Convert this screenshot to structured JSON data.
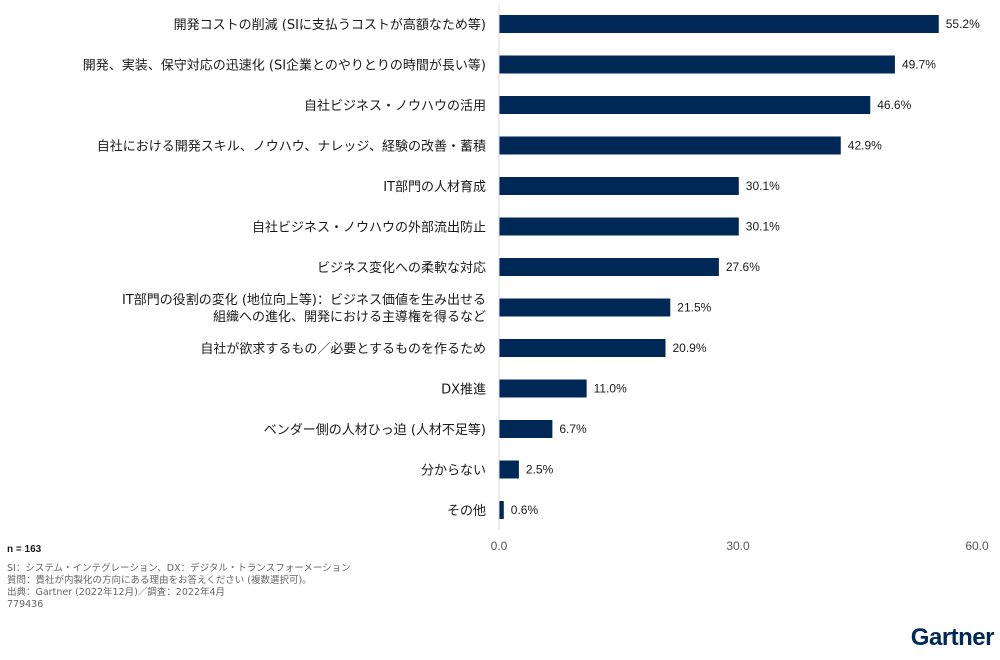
{
  "chart_data": {
    "type": "bar",
    "orientation": "horizontal",
    "categories": [
      [
        "開発コストの削減 (SIに支払うコストが高額なため等)"
      ],
      [
        "開発、実装、保守対応の迅速化 (SI企業とのやりとりの時間が長い等)"
      ],
      [
        "自社ビジネス・ノウハウの活用"
      ],
      [
        "自社における開発スキル、ノウハウ、ナレッジ、経験の改善・蓄積"
      ],
      [
        "IT部門の人材育成"
      ],
      [
        "自社ビジネス・ノウハウの外部流出防止"
      ],
      [
        "ビジネス変化への柔軟な対応"
      ],
      [
        "IT部門の役割の変化 (地位向上等)：ビジネス価値を生み出せる",
        "組織への進化、開発における主導権を得るなど"
      ],
      [
        "自社が欲求するもの／必要とするものを作るため"
      ],
      [
        "DX推進"
      ],
      [
        "ベンダー側の人材ひっ迫 (人材不足等)"
      ],
      [
        "分からない"
      ],
      [
        "その他"
      ]
    ],
    "values": [
      55.2,
      49.7,
      46.6,
      42.9,
      30.1,
      30.1,
      27.6,
      21.5,
      20.9,
      11.0,
      6.7,
      2.5,
      0.6
    ],
    "value_labels": [
      "55.2%",
      "49.7%",
      "46.6%",
      "42.9%",
      "30.1%",
      "30.1%",
      "27.6%",
      "21.5%",
      "20.9%",
      "11.0%",
      "6.7%",
      "2.5%",
      "0.6%"
    ],
    "xlim": [
      0,
      60
    ],
    "x_ticks": [
      0,
      30,
      60
    ],
    "x_tick_labels": [
      "0.0",
      "30.0",
      "60.0"
    ],
    "title": "",
    "xlabel": "",
    "ylabel": "",
    "grid": false,
    "bar_color": "#002856"
  },
  "notes": {
    "n": "n = 163",
    "lines": [
      "SI：システム・インテグレーション、DX：デジタル・トランスフォーメーション",
      "質問：貴社が内製化の方向にある理由をお答えください (複数選択可)。",
      "出典：Gartner (2022年12月)／調査：2022年4月",
      "779436"
    ]
  },
  "brand": {
    "logo_text": "Gartner",
    "color": "#002856"
  }
}
